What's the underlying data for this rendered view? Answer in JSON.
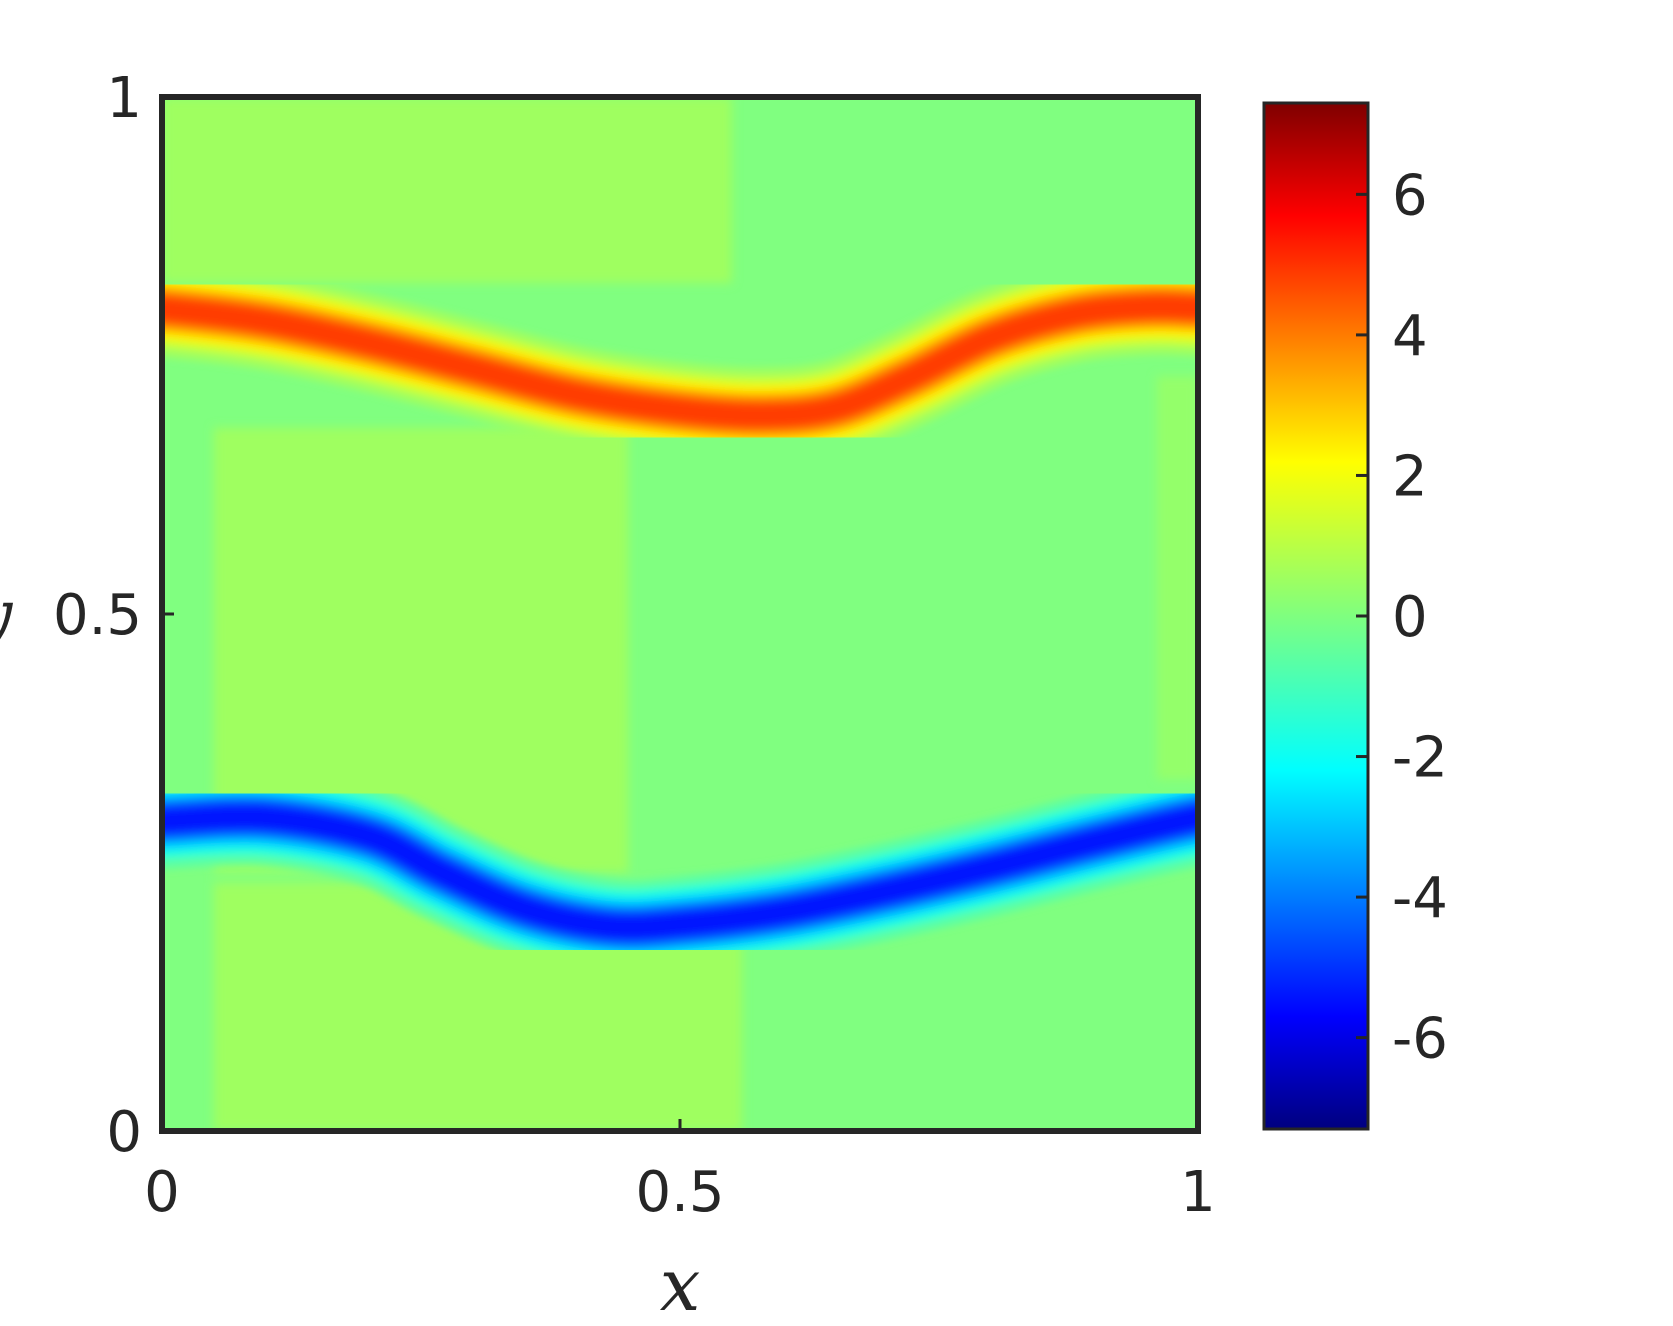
{
  "chart_data": {
    "type": "heatmap",
    "title": "",
    "xlabel": "x",
    "ylabel": "y",
    "xlim": [
      0,
      1
    ],
    "ylim": [
      0,
      1
    ],
    "xticks": [
      {
        "value": 0,
        "label": "0"
      },
      {
        "value": 0.5,
        "label": "0.5"
      },
      {
        "value": 1,
        "label": "1"
      }
    ],
    "yticks": [
      {
        "value": 0,
        "label": "0"
      },
      {
        "value": 0.5,
        "label": "0.5"
      },
      {
        "value": 1,
        "label": "1"
      }
    ],
    "colormap": "jet",
    "colorbar": {
      "range": [
        -7.3,
        7.3
      ],
      "ticks": [
        {
          "value": 6,
          "label": "6"
        },
        {
          "value": 4,
          "label": "4"
        },
        {
          "value": 2,
          "label": "2"
        },
        {
          "value": 0,
          "label": "0"
        },
        {
          "value": -2,
          "label": "-2"
        },
        {
          "value": -4,
          "label": "-4"
        },
        {
          "value": -6,
          "label": "-6"
        }
      ]
    },
    "background_level": 0,
    "bands": [
      {
        "name": "upper",
        "peak": 4.6,
        "centerline_y": [
          [
            0,
            0.795
          ],
          [
            0.1,
            0.783
          ],
          [
            0.2,
            0.762
          ],
          [
            0.3,
            0.737
          ],
          [
            0.4,
            0.712
          ],
          [
            0.5,
            0.697
          ],
          [
            0.58,
            0.692
          ],
          [
            0.65,
            0.699
          ],
          [
            0.72,
            0.728
          ],
          [
            0.8,
            0.767
          ],
          [
            0.88,
            0.79
          ],
          [
            0.95,
            0.797
          ],
          [
            1,
            0.796
          ]
        ]
      },
      {
        "name": "lower",
        "peak": -5.2,
        "centerline_y": [
          [
            0,
            0.3
          ],
          [
            0.1,
            0.303
          ],
          [
            0.2,
            0.285
          ],
          [
            0.27,
            0.25
          ],
          [
            0.35,
            0.215
          ],
          [
            0.43,
            0.198
          ],
          [
            0.5,
            0.2
          ],
          [
            0.6,
            0.212
          ],
          [
            0.7,
            0.232
          ],
          [
            0.8,
            0.255
          ],
          [
            0.9,
            0.28
          ],
          [
            1,
            0.303
          ]
        ]
      }
    ],
    "background_patches": [
      {
        "x": [
          0,
          0.55
        ],
        "y": [
          0.82,
          1
        ],
        "level": 0.45
      },
      {
        "x": [
          0.05,
          0.45
        ],
        "y": [
          0.25,
          0.68
        ],
        "level": 0.45
      },
      {
        "x": [
          0.05,
          0.56
        ],
        "y": [
          0,
          0.24
        ],
        "level": 0.45
      },
      {
        "x": [
          0.96,
          1
        ],
        "y": [
          0.34,
          0.73
        ],
        "level": 0.3
      }
    ]
  }
}
